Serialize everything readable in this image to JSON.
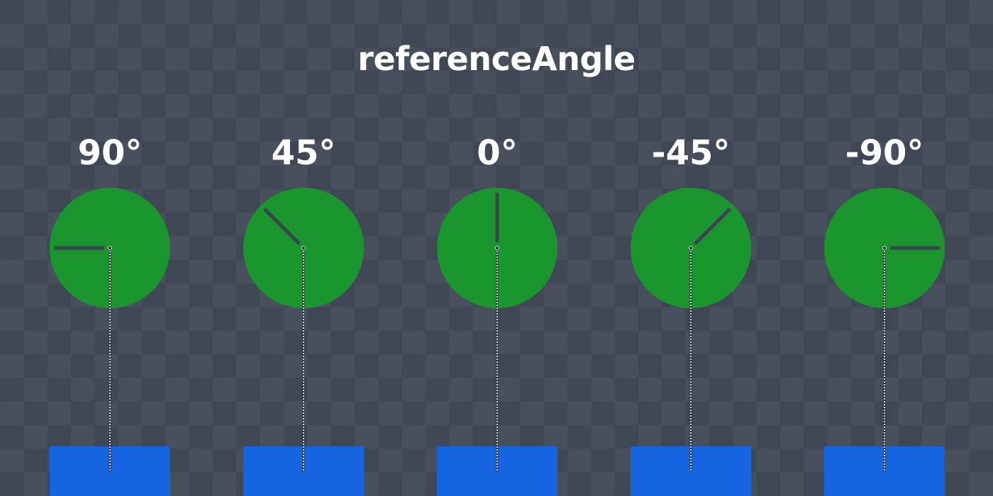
{
  "title": "referenceAngle",
  "colors": {
    "background": "#3f4754",
    "checker": "#48505d",
    "circle": "#1b962f",
    "box": "#1565e0",
    "indicator": "#3b4350",
    "tether": "#ffffff"
  },
  "chart_data": {
    "type": "diagram",
    "angles": [
      {
        "label": "90°",
        "value": 90
      },
      {
        "label": "45°",
        "value": 45
      },
      {
        "label": "0°",
        "value": 0
      },
      {
        "label": "-45°",
        "value": -45
      },
      {
        "label": "-90°",
        "value": -90
      }
    ]
  }
}
